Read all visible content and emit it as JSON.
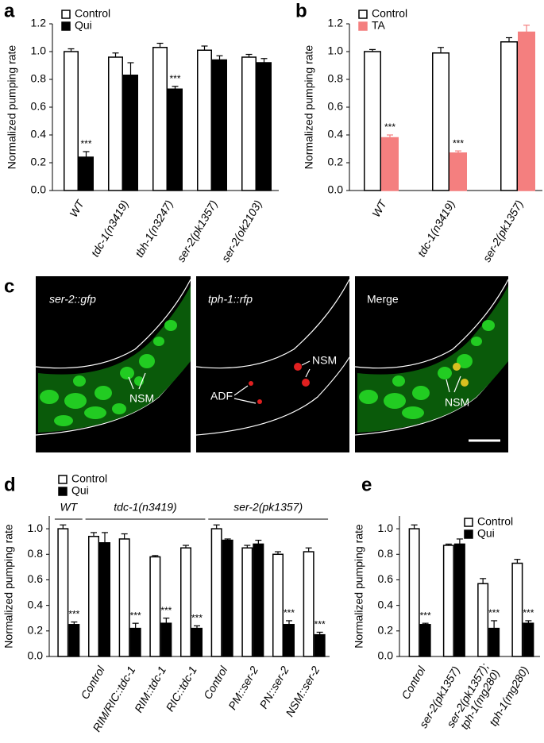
{
  "chart_data": [
    {
      "type": "bar",
      "panel": "a",
      "ylabel": "Normalized pumping rate",
      "categories": [
        "WT",
        "tdc-1(n3419)",
        "tbh-1(n3247)",
        "ser-2(pk1357)",
        "ser-2(ok2103)"
      ],
      "series": [
        {
          "name": "Control",
          "color": "#ffffff",
          "values": [
            1.0,
            0.96,
            1.03,
            1.01,
            0.96
          ],
          "errors": [
            0.02,
            0.03,
            0.03,
            0.03,
            0.02
          ],
          "stars": [
            null,
            null,
            null,
            null,
            null
          ]
        },
        {
          "name": "Qui",
          "color": "#000000",
          "values": [
            0.24,
            0.83,
            0.73,
            0.94,
            0.92
          ],
          "errors": [
            0.04,
            0.09,
            0.02,
            0.03,
            0.03
          ],
          "stars": [
            "***",
            null,
            "***",
            null,
            null
          ]
        }
      ],
      "ylim": [
        0,
        1.2
      ],
      "yticks": [
        {
          "value": 0,
          "label": "0.0"
        },
        0.2,
        0.4,
        0.6,
        0.8,
        {
          "value": 1,
          "label": "1.0"
        },
        1.2
      ],
      "legend": "upper left"
    },
    {
      "type": "bar",
      "panel": "b",
      "ylabel": "Normalized pumping rate",
      "categories": [
        "WT",
        "tdc-1(n3419)",
        "ser-2(pk1357)"
      ],
      "series": [
        {
          "name": "Control",
          "color": "#ffffff",
          "values": [
            1.0,
            0.99,
            1.07
          ],
          "errors": [
            0.015,
            0.04,
            0.03
          ],
          "stars": [
            null,
            null,
            null
          ]
        },
        {
          "name": "TA",
          "color": "#f47f7f",
          "values": [
            0.38,
            0.27,
            1.14
          ],
          "errors": [
            0.02,
            0.015,
            0.05
          ],
          "stars": [
            "***",
            "***",
            null
          ]
        }
      ],
      "ylim": [
        0,
        1.2
      ],
      "yticks": [
        {
          "value": 0,
          "label": "0.0"
        },
        0.2,
        0.4,
        0.6,
        0.8,
        {
          "value": 1,
          "label": "1.0"
        },
        1.2
      ],
      "legend": "upper left"
    },
    {
      "type": "bar",
      "panel": "d",
      "ylabel": "Normalized pumping rate",
      "categories": [
        null,
        "Control",
        "RIM/RIC::tdc-1",
        "RIM::tdc-1",
        "RIC::tdc-1",
        "Control",
        "PM::ser-2",
        "PN::ser-2",
        "NSM::ser-2"
      ],
      "groups": [
        {
          "label": "WT",
          "start": 0,
          "end": 0
        },
        {
          "label": "tdc-1(n3419)",
          "start": 1,
          "end": 4
        },
        {
          "label": "ser-2(pk1357)",
          "start": 5,
          "end": 8
        }
      ],
      "series": [
        {
          "name": "Control",
          "color": "#ffffff",
          "values": [
            1.0,
            0.94,
            0.92,
            0.78,
            0.85,
            1.0,
            0.85,
            0.8,
            0.82
          ],
          "errors": [
            0.03,
            0.03,
            0.04,
            0.01,
            0.02,
            0.03,
            0.02,
            0.02,
            0.03
          ],
          "stars": [
            null,
            null,
            null,
            null,
            null,
            null,
            null,
            null,
            null
          ]
        },
        {
          "name": "Qui",
          "color": "#000000",
          "values": [
            0.25,
            0.89,
            0.22,
            0.26,
            0.22,
            0.91,
            0.88,
            0.25,
            0.17
          ],
          "errors": [
            0.02,
            0.08,
            0.04,
            0.04,
            0.02,
            0.01,
            0.03,
            0.03,
            0.02
          ],
          "stars": [
            "***",
            null,
            "***",
            "***",
            "***",
            null,
            null,
            "***",
            "***"
          ]
        }
      ],
      "ylim": [
        0,
        1.1
      ],
      "yticks": [
        {
          "value": 0,
          "label": "0.0"
        },
        0.2,
        0.4,
        0.6,
        0.8,
        {
          "value": 1,
          "label": "1.0"
        }
      ],
      "legend": "upper left"
    },
    {
      "type": "bar",
      "panel": "e",
      "ylabel": "Normalized pumping rate",
      "categories": [
        [
          "Control"
        ],
        [
          "ser-2(pk1357)"
        ],
        [
          "ser-2(pk1357);",
          "tph-1(mg280)"
        ],
        [
          "tph-1(mg280)"
        ]
      ],
      "series": [
        {
          "name": "Control",
          "color": "#ffffff",
          "values": [
            1.0,
            0.87,
            0.57,
            0.73
          ],
          "errors": [
            0.03,
            0.01,
            0.04,
            0.03
          ],
          "stars": [
            null,
            null,
            null,
            null
          ]
        },
        {
          "name": "Qui",
          "color": "#000000",
          "values": [
            0.25,
            0.88,
            0.22,
            0.26
          ],
          "errors": [
            0.01,
            0.04,
            0.06,
            0.02
          ],
          "stars": [
            "***",
            null,
            "***",
            "***"
          ]
        }
      ],
      "ylim": [
        0,
        1.1
      ],
      "yticks": [
        {
          "value": 0,
          "label": "0.0"
        },
        0.2,
        0.4,
        0.6,
        0.8,
        {
          "value": 1,
          "label": "1.0"
        }
      ],
      "legend": "upper right"
    }
  ],
  "image_panel": {
    "panel": "c",
    "images": [
      {
        "title": "ser-2::gfp",
        "labels": [
          "NSM"
        ]
      },
      {
        "title": "tph-1::rfp",
        "labels": [
          "NSM",
          "ADF"
        ]
      },
      {
        "title": "Merge",
        "labels": [
          "NSM"
        ]
      }
    ]
  }
}
